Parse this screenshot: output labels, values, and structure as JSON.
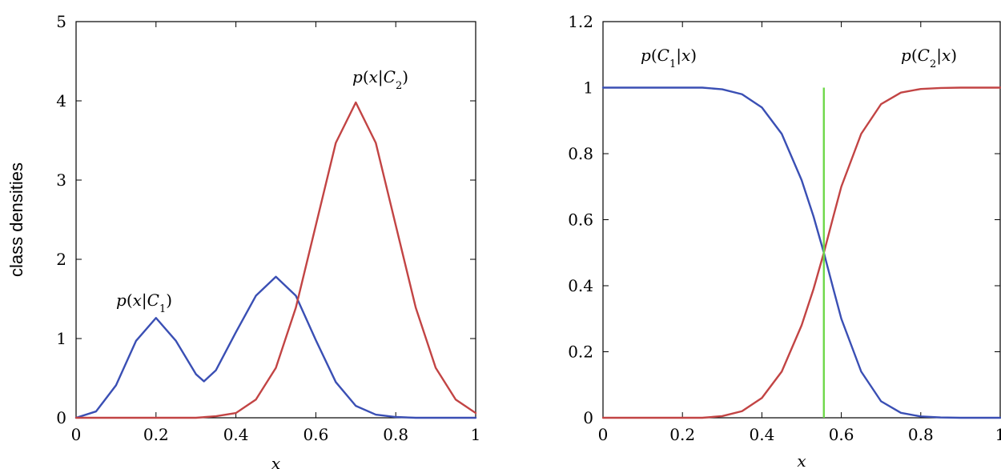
{
  "chart_data": [
    {
      "type": "line",
      "title": "",
      "xlabel": "x",
      "ylabel": "class densities",
      "xlim": [
        0,
        1
      ],
      "ylim": [
        0,
        5
      ],
      "xticks": [
        "0",
        "0.2",
        "0.4",
        "0.6",
        "0.8",
        "1"
      ],
      "yticks": [
        "0",
        "1",
        "2",
        "3",
        "4",
        "5"
      ],
      "grid": false,
      "annotations": [
        {
          "text": "p(x|C1)",
          "x": 0.18,
          "y": 1.45
        },
        {
          "text": "p(x|C2)",
          "x": 0.72,
          "y": 4.25
        }
      ],
      "series": [
        {
          "color": "#3a4fb4",
          "x": [
            0.0,
            0.05,
            0.1,
            0.15,
            0.2,
            0.25,
            0.3,
            0.32,
            0.35,
            0.4,
            0.45,
            0.5,
            0.55,
            0.6,
            0.65,
            0.7,
            0.75,
            0.8,
            0.85,
            0.9,
            0.95,
            1.0
          ],
          "y": [
            0.0,
            0.08,
            0.41,
            0.97,
            1.26,
            0.97,
            0.55,
            0.46,
            0.6,
            1.08,
            1.54,
            1.78,
            1.54,
            0.98,
            0.45,
            0.15,
            0.04,
            0.01,
            0.0,
            0.0,
            0.0,
            0.0
          ]
        },
        {
          "color": "#c24444",
          "x": [
            0.0,
            0.05,
            0.1,
            0.15,
            0.2,
            0.25,
            0.3,
            0.35,
            0.4,
            0.45,
            0.5,
            0.55,
            0.6,
            0.65,
            0.7,
            0.75,
            0.8,
            0.85,
            0.9,
            0.95,
            1.0
          ],
          "y": [
            0.0,
            0.0,
            0.0,
            0.0,
            0.0,
            0.0,
            0.0,
            0.02,
            0.06,
            0.23,
            0.63,
            1.39,
            2.43,
            3.47,
            3.98,
            3.47,
            2.43,
            1.39,
            0.63,
            0.23,
            0.06
          ]
        }
      ]
    },
    {
      "type": "line",
      "title": "",
      "xlabel": "x",
      "ylabel": "",
      "xlim": [
        0,
        1
      ],
      "ylim": [
        0,
        1.2
      ],
      "xticks": [
        "0",
        "0.2",
        "0.4",
        "0.6",
        "0.8",
        "1"
      ],
      "yticks": [
        "0",
        "0.2",
        "0.4",
        "0.6",
        "0.8",
        "1",
        "1.2"
      ],
      "grid": false,
      "annotations": [
        {
          "text": "p(C1|x)",
          "x": 0.17,
          "y": 1.09
        },
        {
          "text": "p(C2|x)",
          "x": 0.9,
          "y": 1.09
        }
      ],
      "series": [
        {
          "color": "#3a4fb4",
          "x": [
            0.0,
            0.1,
            0.2,
            0.25,
            0.3,
            0.35,
            0.4,
            0.45,
            0.5,
            0.53,
            0.556,
            0.58,
            0.6,
            0.65,
            0.7,
            0.75,
            0.8,
            0.85,
            0.9,
            1.0
          ],
          "y": [
            1.0,
            1.0,
            1.0,
            1.0,
            0.995,
            0.98,
            0.94,
            0.86,
            0.72,
            0.61,
            0.5,
            0.39,
            0.3,
            0.14,
            0.05,
            0.015,
            0.004,
            0.001,
            0.0,
            0.0
          ]
        },
        {
          "color": "#c24444",
          "x": [
            0.0,
            0.1,
            0.2,
            0.25,
            0.3,
            0.35,
            0.4,
            0.45,
            0.5,
            0.53,
            0.556,
            0.58,
            0.6,
            0.65,
            0.7,
            0.75,
            0.8,
            0.85,
            0.9,
            1.0
          ],
          "y": [
            0.0,
            0.0,
            0.0,
            0.0,
            0.005,
            0.02,
            0.06,
            0.14,
            0.28,
            0.39,
            0.5,
            0.61,
            0.7,
            0.86,
            0.95,
            0.985,
            0.996,
            0.999,
            1.0,
            1.0
          ]
        }
      ],
      "vertical_lines": [
        {
          "x": 0.556,
          "y0": 0,
          "y1": 1.0,
          "color": "#6ed84a"
        }
      ]
    }
  ]
}
